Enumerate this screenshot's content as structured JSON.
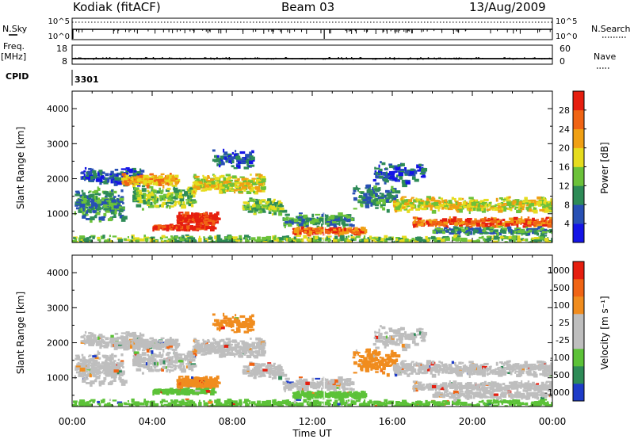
{
  "header": {
    "station": "Kodiak (fitACF)",
    "beam": "Beam 03",
    "date": "13/Aug/2009"
  },
  "side_labels": {
    "n_sky": "N.Sky",
    "freq": "Freq.",
    "freq_unit": "[MHz]",
    "cpid": "CPID",
    "n_search": "N.Search",
    "nave": "Nave",
    "cpid_value": "3301"
  },
  "top_panel_ticks": {
    "sky_top": "10^5",
    "sky_bottom": "10^0",
    "search_top": "10^5",
    "search_bottom": "10^0",
    "freq_top": "18",
    "freq_bottom": "8",
    "nave_top": "60",
    "nave_bottom": "0"
  },
  "chart_data": [
    {
      "type": "heatmap",
      "panel": "power",
      "ylabel": "Slant Range [km]",
      "ylim": [
        180,
        4500
      ],
      "yticks": [
        "1000",
        "2000",
        "3000",
        "4000"
      ],
      "xlim_hours": [
        0,
        24
      ],
      "colorbar_label": "Power [dB]",
      "colorbar_ticks": [
        "4",
        "8",
        "12",
        "16",
        "20",
        "24",
        "28"
      ],
      "colorbar_colors": [
        "#1414e6",
        "#2850b4",
        "#2e8b57",
        "#6cc23a",
        "#e6dc1e",
        "#f0a014",
        "#f06414",
        "#e61e0f"
      ]
    },
    {
      "type": "heatmap",
      "panel": "velocity",
      "ylabel": "Slant Range [km]",
      "ylim": [
        180,
        4500
      ],
      "yticks": [
        "1000",
        "2000",
        "3000",
        "4000"
      ],
      "xlim_hours": [
        0,
        24
      ],
      "colorbar_label": "Velocity [m s⁻¹]",
      "colorbar_ticks": [
        "1000",
        "500",
        "100",
        "25",
        "-25",
        "-100",
        "-500",
        "-1000"
      ],
      "colorbar_colors": [
        "#1e3cc8",
        "#2e8b57",
        "#5cc238",
        "#bebebe",
        "#bebebe",
        "#f08c1e",
        "#f06414",
        "#e61e0f"
      ]
    }
  ],
  "x_axis": {
    "ticks": [
      "00:00",
      "04:00",
      "08:00",
      "12:00",
      "16:00",
      "20:00",
      "00:00"
    ],
    "label": "Time UT"
  }
}
